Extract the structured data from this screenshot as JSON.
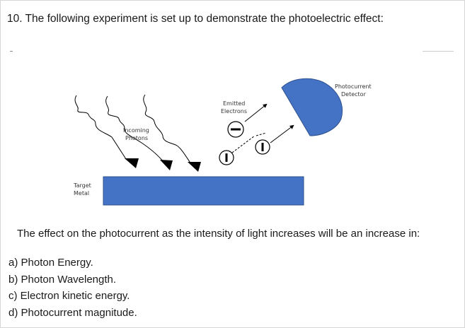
{
  "question": "10. The following experiment is set up to demonstrate the photoelectric effect:",
  "diagram": {
    "incoming_line1": "Incoming",
    "incoming_line2": "Photons",
    "emitted_line1": "Emitted",
    "emitted_line2": "Electrons",
    "detector_line1": "Photocurrent",
    "detector_line2": "Detector",
    "target_line1": "Target",
    "target_line2": "Metal",
    "colors": {
      "metal": "#4472c4",
      "detector": "#4472c4"
    },
    "electron_symbol": "−"
  },
  "prompt": "The effect on the photocurrent as the intensity of light increases will be an increase in:",
  "choices": [
    "a) Photon Energy.",
    "b) Photon Wavelength.",
    "c) Electron kinetic energy.",
    "d) Photocurrent magnitude."
  ]
}
